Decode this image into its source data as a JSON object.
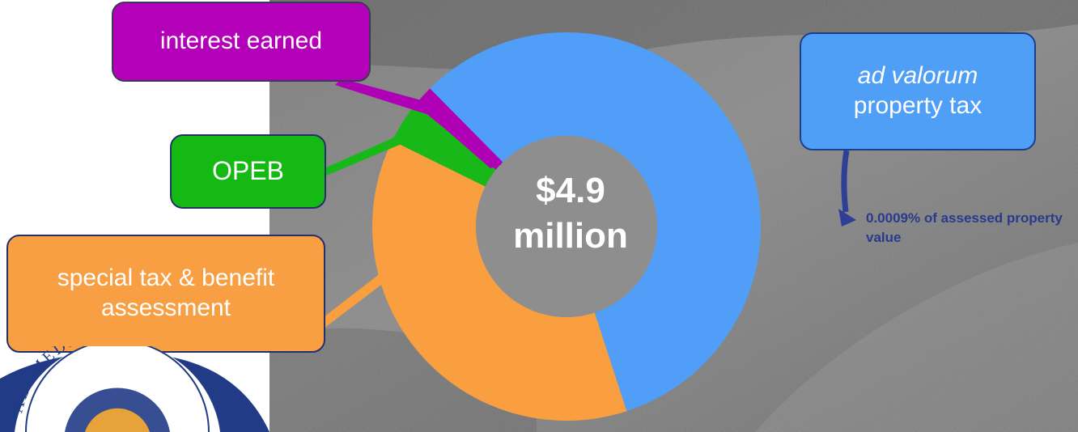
{
  "chart_data": {
    "type": "pie",
    "center_label": [
      "$4.9",
      "million"
    ],
    "slices": [
      {
        "label": "ad valorum property tax",
        "value": 57.4,
        "color": "#519ef8"
      },
      {
        "label": "special tax & benefit assessment",
        "value": 37.3,
        "color": "#fa9f3f"
      },
      {
        "label": "OPEB",
        "value": 3.5,
        "color": "#17b817"
      },
      {
        "label": "interest earned",
        "value": 1.8,
        "color": "#b000b5"
      }
    ],
    "callouts": {
      "interest": "interest earned",
      "opeb": "OPEB",
      "special": "special tax & benefit assessment",
      "adval_italic": "ad valorum",
      "adval_rest": "property tax"
    },
    "note": "0.0009% of assessed property value"
  },
  "seal_text": "ALAMEDA COUNTY",
  "colors": {
    "note_text": "#2a3a8c",
    "arrow": "#2f3f96",
    "seal_blue": "#213b86"
  }
}
